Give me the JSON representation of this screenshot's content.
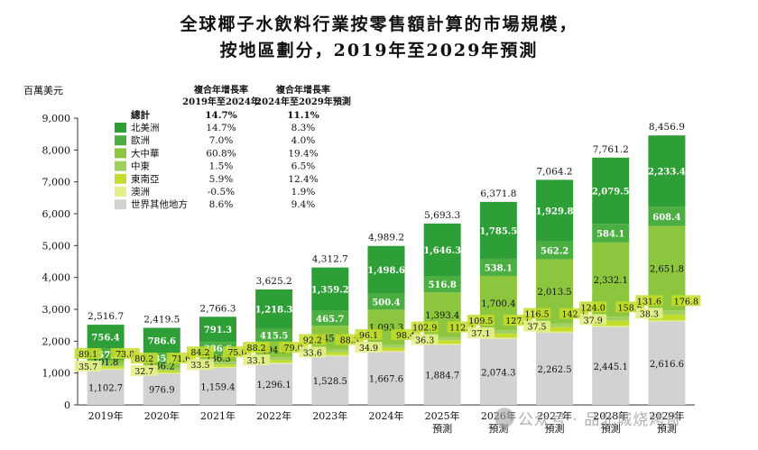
{
  "title_line1": "全球椰子水飲料行業按零售額計算的市場規模，",
  "title_line2": "按地區劃分，2019年至2029年預測",
  "unit_label": "百萬美元",
  "watermark": "公众号 · 品北城烧烤哥",
  "colors": {
    "north_america": "#2e9e36",
    "europe": "#4aae40",
    "greater_china": "#8cc63e",
    "middle_east": "#9fcf5f",
    "southeast_asia": "#c4dc2c",
    "australia": "#e4ef8c",
    "rest_of_world": "#d2d2d2",
    "axis": "#333333"
  },
  "legend": {
    "header_cagr1_line1": "複合年增長率",
    "header_cagr1_line2": "2019年至2024年",
    "header_cagr2_line1": "複合年增長率",
    "header_cagr2_line2": "2024年至2029年預測",
    "total_label": "總計",
    "total_cagr1": "14.7%",
    "total_cagr2": "11.1%",
    "items": [
      {
        "label": "北美洲",
        "cagr1": "14.7%",
        "cagr2": "8.3%",
        "color_key": "north_america"
      },
      {
        "label": "歐洲",
        "cagr1": "7.0%",
        "cagr2": "4.0%",
        "color_key": "europe"
      },
      {
        "label": "大中華",
        "cagr1": "60.8%",
        "cagr2": "19.4%",
        "color_key": "greater_china"
      },
      {
        "label": "中東",
        "cagr1": "1.5%",
        "cagr2": "6.5%",
        "color_key": "middle_east"
      },
      {
        "label": "東南亞",
        "cagr1": "5.9%",
        "cagr2": "12.4%",
        "color_key": "southeast_asia"
      },
      {
        "label": "澳洲",
        "cagr1": "-0.5%",
        "cagr2": "1.9%",
        "color_key": "australia"
      },
      {
        "label": "世界其他地方",
        "cagr1": "8.6%",
        "cagr2": "9.4%",
        "color_key": "rest_of_world"
      }
    ]
  },
  "chart_data": {
    "type": "bar",
    "stacked": true,
    "ylim": [
      0,
      9000
    ],
    "yticks": [
      "0",
      "1,000",
      "2,000",
      "3,000",
      "4,000",
      "5,000",
      "6,000",
      "7,000",
      "8,000",
      "9,000"
    ],
    "ytick_values": [
      0,
      1000,
      2000,
      3000,
      4000,
      5000,
      6000,
      7000,
      8000,
      9000
    ],
    "categories": [
      "2019年",
      "2020年",
      "2021年",
      "2022年",
      "2023年",
      "2024年",
      "2025年",
      "2026年",
      "2027年",
      "2028年",
      "2029年"
    ],
    "category_sublabels": [
      "",
      "",
      "",
      "",
      "",
      "",
      "預測",
      "預測",
      "預測",
      "預測",
      "預測"
    ],
    "totals": [
      "2,516.7",
      "2,419.5",
      "2,766.3",
      "3,625.2",
      "4,312.7",
      "4,989.2",
      "5,693.3",
      "6,371.8",
      "7,064.2",
      "7,761.2",
      "8,456.9"
    ],
    "series": [
      {
        "name": "世界其他地方",
        "color_key": "rest_of_world",
        "values": [
          1102.7,
          976.9,
          1159.4,
          1296.1,
          1528.5,
          1667.6,
          1884.7,
          2074.3,
          2262.5,
          2445.1,
          2616.6
        ],
        "labels": [
          "1,102.7",
          "976.9",
          "1,159.4",
          "1,296.1",
          "1,528.5",
          "1,667.6",
          "1,884.7",
          "2,074.3",
          "2,262.5",
          "2,445.1",
          "2,616.6"
        ]
      },
      {
        "name": "澳洲",
        "color_key": "australia",
        "values": [
          35.7,
          32.7,
          33.5,
          33.1,
          33.6,
          34.9,
          36.3,
          37.1,
          37.5,
          37.9,
          38.3
        ],
        "labels": [
          "35.7",
          "32.7",
          "33.5",
          "33.1",
          "33.6",
          "34.9",
          "36.3",
          "37.1",
          "37.5",
          "37.9",
          "38.3"
        ]
      },
      {
        "name": "東南亞",
        "color_key": "southeast_asia",
        "values": [
          73.8,
          71.6,
          75.0,
          79.0,
          88.3,
          98.4,
          112.7,
          127.1,
          142.1,
          158.6,
          176.8
        ],
        "labels": [
          "73.8",
          "71.6",
          "75.0",
          "79.0",
          "88.3",
          "98.4",
          "112.7",
          "127.1",
          "142.1",
          "158.6",
          "176.8"
        ]
      },
      {
        "name": "中東",
        "color_key": "middle_east",
        "values": [
          89.1,
          80.2,
          84.2,
          88.2,
          92.2,
          96.1,
          102.9,
          109.5,
          116.5,
          124.0,
          131.6
        ],
        "labels": [
          "89.1",
          "80.2",
          "84.2",
          "88.2",
          "92.2",
          "96.1",
          "102.9",
          "109.5",
          "116.5",
          "124.0",
          "131.6"
        ]
      },
      {
        "name": "大中華",
        "color_key": "greater_china",
        "values": [
          101.8,
          136.2,
          236.3,
          494.9,
          745.2,
          1093.3,
          1393.4,
          1700.4,
          2013.5,
          2332.1,
          2651.8
        ],
        "labels": [
          "101.8",
          "136.2",
          "236.3",
          "494.9",
          "745.2",
          "1,093.3",
          "1,393.4",
          "1,700.4",
          "2,013.5",
          "2,332.1",
          "2,651.8"
        ]
      },
      {
        "name": "歐洲",
        "color_key": "europe",
        "values": [
          357.2,
          335.4,
          386.6,
          415.5,
          465.7,
          500.4,
          516.8,
          538.1,
          562.2,
          584.1,
          608.4
        ],
        "labels": [
          "357.2",
          "335.4",
          "386.6",
          "415.5",
          "465.7",
          "500.4",
          "516.8",
          "538.1",
          "562.2",
          "584.1",
          "608.4"
        ]
      },
      {
        "name": "北美洲",
        "color_key": "north_america",
        "values": [
          756.4,
          786.6,
          791.3,
          1218.3,
          1359.2,
          1498.6,
          1646.3,
          1785.5,
          1929.8,
          2079.5,
          2233.4
        ],
        "labels": [
          "756.4",
          "786.6",
          "791.3",
          "1,218.3",
          "1,359.2",
          "1,498.6",
          "1,646.3",
          "1,785.5",
          "1,929.8",
          "2,079.5",
          "2,233.4"
        ]
      }
    ]
  }
}
